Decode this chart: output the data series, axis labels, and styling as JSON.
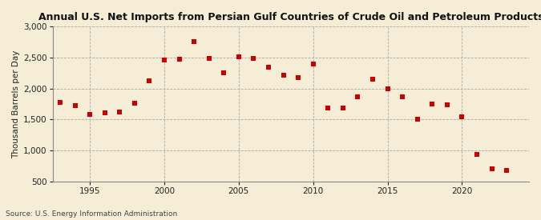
{
  "title": "Annual U.S. Net Imports from Persian Gulf Countries of Crude Oil and Petroleum Products",
  "ylabel": "Thousand Barrels per Day",
  "source": "Source: U.S. Energy Information Administration",
  "background_color": "#F5EDD6",
  "plot_bg_color": "#F5EDD6",
  "marker_color": "#CC0000",
  "marker": "s",
  "marker_size": 5,
  "grid_color": "#AAAAAA",
  "ylim": [
    500,
    3000
  ],
  "yticks": [
    500,
    1000,
    1500,
    2000,
    2500,
    3000
  ],
  "xlim": [
    1992.5,
    2024.5
  ],
  "xticks": [
    1995,
    2000,
    2005,
    2010,
    2015,
    2020
  ],
  "years": [
    1993,
    1994,
    1995,
    1996,
    1997,
    1998,
    1999,
    2000,
    2001,
    2002,
    2003,
    2004,
    2005,
    2006,
    2007,
    2008,
    2009,
    2010,
    2011,
    2012,
    2013,
    2014,
    2015,
    2016,
    2017,
    2018,
    2019,
    2020,
    2021,
    2022,
    2023
  ],
  "values": [
    1780,
    1720,
    1580,
    1610,
    1620,
    1760,
    2130,
    2460,
    2480,
    2760,
    2490,
    2260,
    2510,
    2490,
    2340,
    2220,
    2170,
    2390,
    1680,
    1680,
    1860,
    2145,
    2000,
    1860,
    1500,
    1750,
    1730,
    1540,
    930,
    700,
    670
  ]
}
